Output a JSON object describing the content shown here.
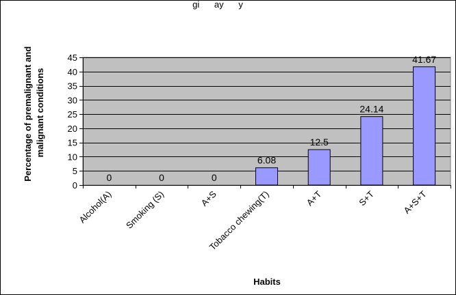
{
  "chart_data": {
    "type": "bar",
    "title": "gi      ay      y",
    "xlabel": "Habits",
    "ylabel": [
      "Percentage of premalignant and",
      "malignant conditions"
    ],
    "categories": [
      "Alcohol(A)",
      "Smoking (S)",
      "A+S",
      "Tobacco chewing(T)",
      "A+T",
      "S+T",
      "A+S+T"
    ],
    "values": [
      0,
      0,
      0,
      6.08,
      12.5,
      24.14,
      41.67
    ],
    "data_labels": [
      "0",
      "0",
      "0",
      "6.08",
      "12.5",
      "24.14",
      "41.67"
    ],
    "ylim": [
      0,
      45
    ],
    "yticks": [
      0,
      5,
      10,
      15,
      20,
      25,
      30,
      35,
      40,
      45
    ],
    "grid": true,
    "legend": "none",
    "colors": {
      "bar_fill": "#9999FF",
      "bar_stroke": "#000000",
      "plot_background": "#C0C0C0",
      "gridline": "#000000",
      "frame": "#000000"
    }
  }
}
